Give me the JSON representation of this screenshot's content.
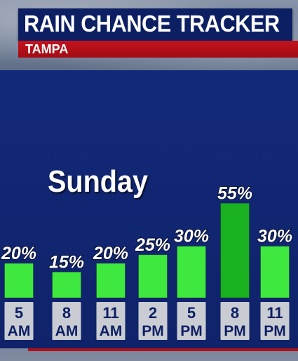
{
  "header": {
    "title": "RAIN CHANCE TRACKER",
    "location": "TAMPA"
  },
  "day": "Sunday",
  "colors": {
    "title_bar": "#0d1f63",
    "location_bar": "#c5121c",
    "panel": "#12297a",
    "bar_normal": "#3fe83f",
    "bar_peak": "#19b11f",
    "label_box": "#c9ccd3",
    "label_text": "#0d1f63"
  },
  "chart_data": {
    "type": "bar",
    "categories": [
      [
        "5",
        "AM"
      ],
      [
        "8",
        "AM"
      ],
      [
        "11",
        "AM"
      ],
      [
        "2",
        "PM"
      ],
      [
        "5",
        "PM"
      ],
      [
        "8",
        "PM"
      ],
      [
        "11",
        "PM"
      ]
    ],
    "values": [
      20,
      15,
      20,
      25,
      30,
      55,
      30
    ],
    "value_labels": [
      "20%",
      "15%",
      "20%",
      "25%",
      "30%",
      "55%",
      "30%"
    ],
    "ylabel": "",
    "xlabel": "",
    "grid": false
  }
}
